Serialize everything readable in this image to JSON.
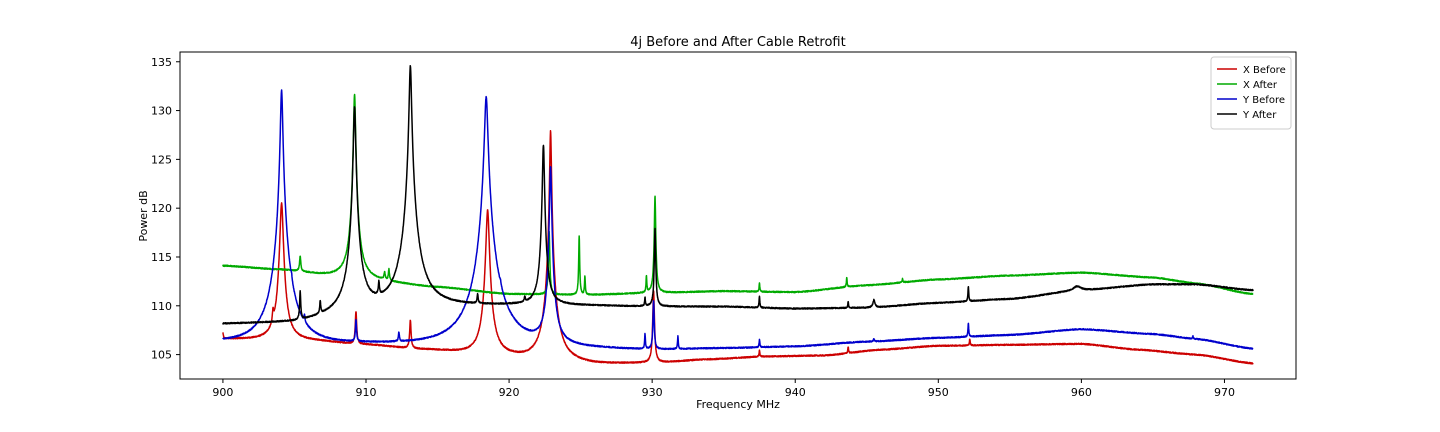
{
  "chart_data": {
    "type": "line",
    "title": "4j Before and After Cable Retrofit",
    "xlabel": "Frequency MHz",
    "ylabel": "Power dB",
    "xlim": [
      897,
      975
    ],
    "ylim": [
      102.5,
      136
    ],
    "xticks": [
      900,
      910,
      920,
      930,
      940,
      950,
      960,
      970
    ],
    "yticks": [
      105,
      110,
      115,
      120,
      125,
      130,
      135
    ],
    "grid": false,
    "legend_position": "top-right",
    "series": [
      {
        "name": "X Before",
        "color": "#cc0000",
        "baseline": [
          [
            900,
            106.6
          ],
          [
            903,
            106.5
          ],
          [
            906,
            106.4
          ],
          [
            910,
            106.0
          ],
          [
            914,
            105.5
          ],
          [
            918,
            105.0
          ],
          [
            922,
            104.4
          ],
          [
            926,
            104.0
          ],
          [
            930,
            104.1
          ],
          [
            934,
            104.5
          ],
          [
            938,
            104.8
          ],
          [
            942,
            104.9
          ],
          [
            946,
            105.5
          ],
          [
            950,
            105.9
          ],
          [
            955,
            106.0
          ],
          [
            960,
            106.1
          ],
          [
            964,
            105.5
          ],
          [
            968,
            105.0
          ],
          [
            972,
            104.1
          ]
        ],
        "peaks": [
          [
            900.0,
            107.2,
            0.03
          ],
          [
            903.5,
            108.2,
            0.05
          ],
          [
            904.1,
            120.5,
            0.1
          ],
          [
            909.3,
            109.4,
            0.05
          ],
          [
            913.1,
            108.5,
            0.05
          ],
          [
            918.5,
            119.8,
            0.1
          ],
          [
            922.9,
            127.9,
            0.05
          ],
          [
            930.1,
            111.5,
            0.05
          ],
          [
            937.5,
            105.4,
            0.03
          ],
          [
            943.7,
            105.8,
            0.03
          ],
          [
            952.2,
            106.6,
            0.03
          ]
        ]
      },
      {
        "name": "X After",
        "color": "#00aa00",
        "baseline": [
          [
            900,
            114.1
          ],
          [
            904,
            113.7
          ],
          [
            908,
            113.0
          ],
          [
            910,
            112.6
          ],
          [
            915,
            111.9
          ],
          [
            920,
            111.2
          ],
          [
            925,
            111.1
          ],
          [
            930,
            111.3
          ],
          [
            935,
            111.5
          ],
          [
            940,
            111.4
          ],
          [
            945,
            112.1
          ],
          [
            950,
            112.7
          ],
          [
            955,
            113.1
          ],
          [
            960,
            113.4
          ],
          [
            965,
            112.9
          ],
          [
            968,
            112.3
          ],
          [
            972,
            111.2
          ]
        ],
        "peaks": [
          [
            905.4,
            115.0,
            0.05
          ],
          [
            909.2,
            131.7,
            0.06
          ],
          [
            911.3,
            113.2,
            0.05
          ],
          [
            911.6,
            113.6,
            0.04
          ],
          [
            922.8,
            117.6,
            0.04
          ],
          [
            924.9,
            117.2,
            0.03
          ],
          [
            925.3,
            113.0,
            0.03
          ],
          [
            929.6,
            113.0,
            0.03
          ],
          [
            930.2,
            121.2,
            0.04
          ],
          [
            937.5,
            112.3,
            0.03
          ],
          [
            943.6,
            112.9,
            0.03
          ],
          [
            947.5,
            112.8,
            0.03
          ]
        ]
      },
      {
        "name": "Y Before",
        "color": "#0000cc",
        "baseline": [
          [
            900,
            106.1
          ],
          [
            905,
            105.8
          ],
          [
            910,
            105.9
          ],
          [
            915,
            105.8
          ],
          [
            920,
            105.7
          ],
          [
            925,
            105.5
          ],
          [
            930,
            105.4
          ],
          [
            935,
            105.6
          ],
          [
            940,
            105.8
          ],
          [
            945,
            106.3
          ],
          [
            950,
            106.7
          ],
          [
            955,
            107.0
          ],
          [
            960,
            107.6
          ],
          [
            965,
            107.1
          ],
          [
            968,
            106.6
          ],
          [
            972,
            105.6
          ]
        ],
        "peaks": [
          [
            904.1,
            132.1,
            0.07
          ],
          [
            904.8,
            107.5,
            0.04
          ],
          [
            905.7,
            107.0,
            0.04
          ],
          [
            909.3,
            108.3,
            0.04
          ],
          [
            912.3,
            106.9,
            0.04
          ],
          [
            918.4,
            131.4,
            0.1
          ],
          [
            919.4,
            106.9,
            0.04
          ],
          [
            922.9,
            124.2,
            0.06
          ],
          [
            929.5,
            107.0,
            0.03
          ],
          [
            930.1,
            110.5,
            0.04
          ],
          [
            931.8,
            106.8,
            0.03
          ],
          [
            937.5,
            106.5,
            0.03
          ],
          [
            945.5,
            106.6,
            0.04
          ],
          [
            952.1,
            108.2,
            0.03
          ],
          [
            967.8,
            106.9,
            0.03
          ]
        ]
      },
      {
        "name": "Y After",
        "color": "#000000",
        "baseline": [
          [
            900,
            108.1
          ],
          [
            905,
            108.2
          ],
          [
            910,
            109.3
          ],
          [
            915,
            109.9
          ],
          [
            920,
            110.0
          ],
          [
            925,
            110.0
          ],
          [
            930,
            109.9
          ],
          [
            935,
            109.9
          ],
          [
            940,
            109.7
          ],
          [
            945,
            109.8
          ],
          [
            950,
            110.3
          ],
          [
            955,
            110.7
          ],
          [
            960,
            111.6
          ],
          [
            965,
            112.2
          ],
          [
            968,
            112.2
          ],
          [
            972,
            111.6
          ]
        ],
        "peaks": [
          [
            905.4,
            111.3,
            0.04
          ],
          [
            906.8,
            110.0,
            0.04
          ],
          [
            909.2,
            130.4,
            0.07
          ],
          [
            910.9,
            111.3,
            0.04
          ],
          [
            913.1,
            134.6,
            0.07
          ],
          [
            917.8,
            111.0,
            0.04
          ],
          [
            921.1,
            110.6,
            0.04
          ],
          [
            922.4,
            126.5,
            0.06
          ],
          [
            929.5,
            110.8,
            0.03
          ],
          [
            930.2,
            117.9,
            0.04
          ],
          [
            937.5,
            111.0,
            0.03
          ],
          [
            943.7,
            110.4,
            0.03
          ],
          [
            945.5,
            110.6,
            0.08
          ],
          [
            952.1,
            112.0,
            0.03
          ],
          [
            959.7,
            112.0,
            0.3
          ]
        ]
      }
    ]
  }
}
